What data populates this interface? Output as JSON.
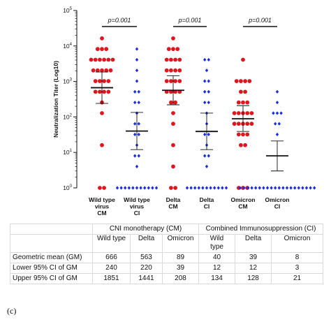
{
  "chart_data": {
    "type": "scatter",
    "ylabel": "Neutralization Titer (Log10)",
    "y_scale": "log",
    "ylim": [
      1,
      100000
    ],
    "y_ticks": [
      {
        "value": 1,
        "base": "10",
        "exp": "0"
      },
      {
        "value": 10,
        "base": "10",
        "exp": "1"
      },
      {
        "value": 100,
        "base": "10",
        "exp": "2"
      },
      {
        "value": 1000,
        "base": "10",
        "exp": "3"
      },
      {
        "value": 10000,
        "base": "10",
        "exp": "4"
      },
      {
        "value": 100000,
        "base": "10",
        "exp": "5"
      }
    ],
    "categories": [
      {
        "lines": [
          "Wild type",
          "virus",
          "CM"
        ]
      },
      {
        "lines": [
          "Wild type",
          "virus",
          "CI"
        ]
      },
      {
        "lines": [
          "Delta",
          "CM"
        ]
      },
      {
        "lines": [
          "Delta",
          "CI"
        ]
      },
      {
        "lines": [
          "Omicron",
          "CM"
        ]
      },
      {
        "lines": [
          "Omicron",
          "CI"
        ]
      }
    ],
    "series": [
      {
        "category": 0,
        "marker": "circle",
        "color": "#e0161e",
        "values": [
          16384,
          8192,
          8192,
          8192,
          4096,
          4096,
          4096,
          4096,
          4096,
          4096,
          2048,
          2048,
          2048,
          2048,
          2048,
          1024,
          1024,
          1024,
          1024,
          512,
          512,
          512,
          512,
          256,
          128,
          16,
          1,
          1
        ],
        "mean": 666,
        "ci": [
          240,
          1851
        ]
      },
      {
        "category": 1,
        "marker": "diamond",
        "color": "#1a2ee0",
        "values": [
          8192,
          4096,
          2048,
          1024,
          512,
          512,
          256,
          256,
          128,
          64,
          64,
          32,
          32,
          16,
          8,
          8,
          4,
          1,
          1,
          1,
          1,
          1,
          1,
          1,
          1,
          1,
          1,
          1
        ],
        "mean": 40,
        "ci": [
          12,
          134
        ]
      },
      {
        "category": 2,
        "marker": "circle",
        "color": "#e0161e",
        "values": [
          16384,
          8192,
          8192,
          8192,
          4096,
          4096,
          4096,
          4096,
          2048,
          2048,
          2048,
          2048,
          1024,
          1024,
          1024,
          1024,
          512,
          512,
          512,
          512,
          256,
          256,
          128,
          64,
          16,
          4,
          1,
          1
        ],
        "mean": 563,
        "ci": [
          220,
          1441
        ]
      },
      {
        "category": 3,
        "marker": "diamond",
        "color": "#1a2ee0",
        "values": [
          4096,
          4096,
          2048,
          1024,
          1024,
          512,
          512,
          256,
          256,
          128,
          64,
          32,
          32,
          16,
          8,
          8,
          4,
          1,
          1,
          1,
          1,
          1,
          1,
          1,
          1,
          1,
          1,
          1
        ],
        "mean": 39,
        "ci": [
          12,
          128
        ]
      },
      {
        "category": 4,
        "marker": "circle",
        "color": "#e0161e",
        "values": [
          4096,
          1024,
          1024,
          1024,
          1024,
          512,
          512,
          256,
          256,
          256,
          128,
          128,
          128,
          128,
          128,
          64,
          64,
          64,
          64,
          64,
          32,
          32,
          32,
          16,
          16,
          1,
          1,
          1
        ],
        "mean": 89,
        "ci": [
          39,
          208
        ]
      },
      {
        "category": 5,
        "marker": "diamond",
        "color": "#1a2ee0",
        "values": [
          512,
          256,
          128,
          128,
          128,
          64,
          64,
          32,
          1,
          1,
          1,
          1,
          1,
          1,
          1,
          1,
          1,
          1,
          1,
          1,
          1,
          1,
          1,
          1,
          1,
          1,
          1,
          1
        ],
        "mean": 8,
        "ci": [
          3,
          21
        ]
      }
    ],
    "comparisons": [
      {
        "from": 0,
        "to": 1,
        "label": "p=0.001"
      },
      {
        "from": 2,
        "to": 3,
        "label": "p=0.001"
      },
      {
        "from": 4,
        "to": 5,
        "label": "p=0.001"
      }
    ],
    "grid": false,
    "legend": "none"
  },
  "table": {
    "group_headers": [
      "CNI monotherapy (CM)",
      "Combined Immunosuppression (CI)"
    ],
    "col_headers": [
      "Wild type",
      "Delta",
      "Omicron",
      "Wild type",
      "Delta",
      "Omicron"
    ],
    "rows": [
      {
        "label": "Geometric mean (GM)",
        "values": [
          "666",
          "563",
          "89",
          "40",
          "39",
          "8"
        ]
      },
      {
        "label": "Lower 95% CI of GM",
        "values": [
          "240",
          "220",
          "39",
          "12",
          "12",
          "3"
        ]
      },
      {
        "label": "Upper 95% CI of GM",
        "values": [
          "1851",
          "1441",
          "208",
          "134",
          "128",
          "21"
        ]
      }
    ]
  },
  "panel_label": "(c)"
}
